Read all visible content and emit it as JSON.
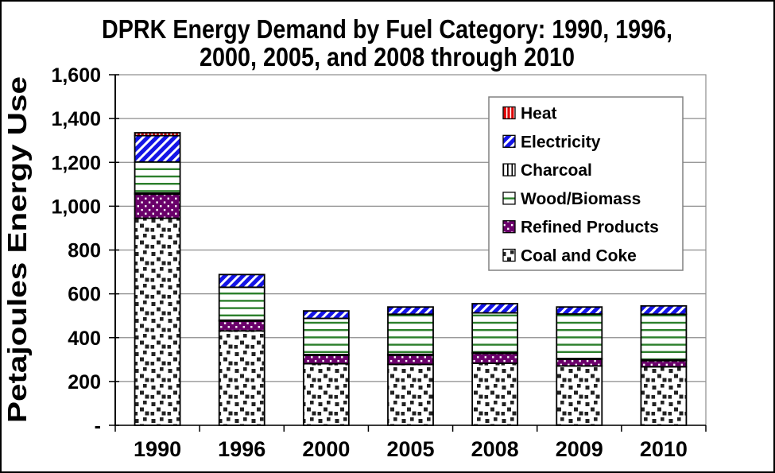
{
  "figure": {
    "title_line1": "DPRK Energy Demand by Fuel Category: 1990, 1996,",
    "title_line2": "2000, 2005, and 2008 through 2010",
    "y_axis_label": "Petajoules Energy Use"
  },
  "chart_data": {
    "type": "bar",
    "stacked": true,
    "title": "DPRK Energy Demand by Fuel Category: 1990, 1996, 2000, 2005, and 2008 through 2010",
    "ylabel": "Petajoules Energy Use",
    "xlabel": "",
    "categories": [
      "1990",
      "1996",
      "2000",
      "2005",
      "2008",
      "2009",
      "2010"
    ],
    "ylim": [
      0,
      1600
    ],
    "ytick_interval": 200,
    "ytick_labels": [
      "-",
      "200",
      "400",
      "600",
      "800",
      "1,000",
      "1,200",
      "1,400",
      "1,600"
    ],
    "grid": true,
    "gridline_color": "#8c8c8c",
    "legend_position": "inside-upper-right",
    "series": [
      {
        "name": "Coal and Coke",
        "pattern": "coal",
        "color": "#2b2b2b",
        "values": [
          945,
          431,
          281,
          278,
          283,
          271,
          267
        ]
      },
      {
        "name": "Refined Products",
        "pattern": "refined",
        "color": "#6a006a",
        "values": [
          110,
          45,
          38,
          42,
          45,
          30,
          28
        ]
      },
      {
        "name": "Charcoal",
        "pattern": "charcoal",
        "color": "#000000",
        "values": [
          5,
          4,
          4,
          4,
          4,
          4,
          4
        ]
      },
      {
        "name": "Wood/Biomass",
        "pattern": "wood",
        "color": "#2b7f2b",
        "values": [
          142,
          150,
          165,
          183,
          181,
          203,
          208
        ]
      },
      {
        "name": "Electricity",
        "pattern": "electricity",
        "color": "#1414e6",
        "values": [
          120,
          58,
          34,
          33,
          42,
          32,
          38
        ]
      },
      {
        "name": "Heat",
        "pattern": "heat",
        "color": "#dd0000",
        "values": [
          13,
          0,
          0,
          0,
          0,
          0,
          0
        ]
      }
    ],
    "legend_order_top_to_bottom": [
      "Heat",
      "Electricity",
      "Charcoal",
      "Wood/Biomass",
      "Refined Products",
      "Coal and Coke"
    ]
  }
}
